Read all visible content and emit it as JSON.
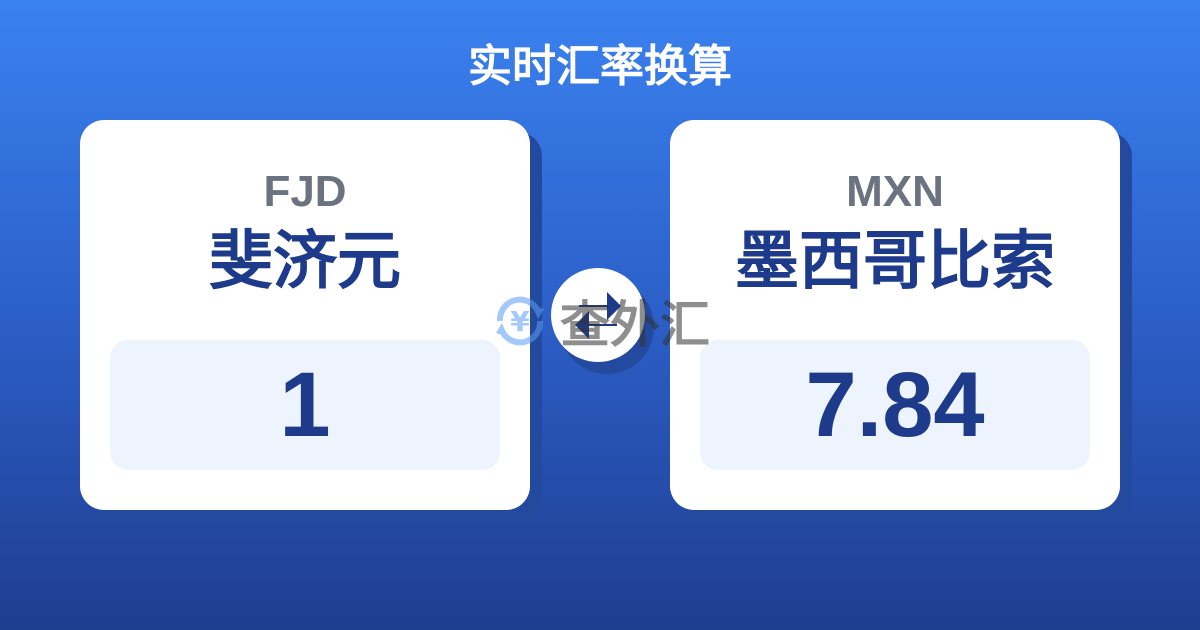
{
  "header": {
    "title": "实时汇率换算"
  },
  "from": {
    "code": "FJD",
    "name": "斐济元",
    "amount": "1"
  },
  "to": {
    "code": "MXN",
    "name": "墨西哥比索",
    "amount": "7.84"
  },
  "swap": {
    "icon": "swap-arrows-icon"
  },
  "watermark": {
    "text": "查外汇",
    "icon": "yen-refresh-icon"
  },
  "colors": {
    "accent": "#1e3a8a",
    "background_top": "#3a82f0",
    "background_bottom": "#1f3d8f"
  }
}
